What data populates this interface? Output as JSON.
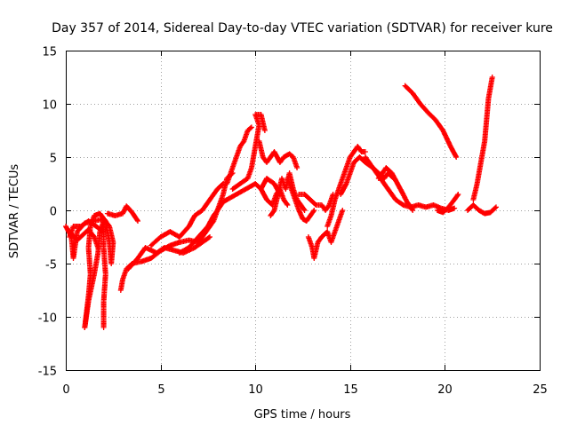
{
  "chart_data": {
    "type": "scatter",
    "title": "Day 357 of 2014, Sidereal Day-to-day VTEC variation (SDTVAR) for receiver kure",
    "xlabel": "GPS time / hours",
    "ylabel": "SDTVAR / TECUs",
    "xlim": [
      0,
      25
    ],
    "ylim": [
      -15,
      15
    ],
    "xticks": [
      "0",
      "5",
      "10",
      "15",
      "20",
      "25"
    ],
    "yticks": [
      "15",
      "10",
      "5",
      "0",
      "-5",
      "-10",
      "-15"
    ],
    "grid": true,
    "marker": "+",
    "series": [
      {
        "name": "SDTVAR",
        "color": "#ff0000",
        "segments": [
          [
            [
              0.0,
              -1.5
            ],
            [
              0.3,
              -2.5
            ],
            [
              0.4,
              -4.5
            ],
            [
              0.6,
              -2.0
            ],
            [
              1.0,
              -1.2
            ],
            [
              1.5,
              -1.0
            ],
            [
              2.0,
              -0.8
            ],
            [
              2.3,
              -1.5
            ],
            [
              2.5,
              -3.0
            ],
            [
              2.4,
              -5.0
            ],
            [
              2.3,
              -3.0
            ],
            [
              2.1,
              -1.0
            ],
            [
              1.8,
              -0.3
            ],
            [
              1.5,
              -0.5
            ],
            [
              1.3,
              -1.5
            ],
            [
              1.2,
              -3.5
            ],
            [
              1.3,
              -6.0
            ],
            [
              1.2,
              -8.0
            ],
            [
              1.1,
              -9.5
            ],
            [
              1.0,
              -11.0
            ]
          ],
          [
            [
              1.0,
              -11.0
            ],
            [
              1.2,
              -8.5
            ],
            [
              1.5,
              -6.0
            ],
            [
              1.7,
              -4.0
            ],
            [
              1.8,
              -2.0
            ],
            [
              2.0,
              -1.0
            ],
            [
              2.0,
              -3.5
            ],
            [
              2.1,
              -6.0
            ],
            [
              2.0,
              -8.5
            ],
            [
              2.0,
              -11.0
            ]
          ],
          [
            [
              0.2,
              -2.5
            ],
            [
              0.4,
              -1.5
            ],
            [
              0.8,
              -1.5
            ],
            [
              1.2,
              -1.0
            ],
            [
              1.6,
              -1.5
            ],
            [
              2.0,
              -2.0
            ]
          ],
          [
            [
              0.3,
              -2.2
            ],
            [
              0.6,
              -2.8
            ],
            [
              0.9,
              -2.3
            ],
            [
              1.2,
              -1.8
            ],
            [
              1.5,
              -2.5
            ],
            [
              1.7,
              -3.5
            ]
          ],
          [
            [
              2.2,
              -0.3
            ],
            [
              2.6,
              -0.5
            ],
            [
              3.0,
              -0.3
            ],
            [
              3.2,
              0.4
            ],
            [
              3.5,
              -0.2
            ],
            [
              3.8,
              -1.0
            ]
          ],
          [
            [
              2.9,
              -7.5
            ],
            [
              3.0,
              -6.5
            ],
            [
              3.2,
              -5.5
            ],
            [
              3.5,
              -5.0
            ],
            [
              4.0,
              -4.8
            ],
            [
              4.5,
              -4.5
            ],
            [
              5.0,
              -3.8
            ],
            [
              5.5,
              -3.3
            ],
            [
              6.0,
              -3.0
            ],
            [
              6.5,
              -2.8
            ],
            [
              7.0,
              -3.0
            ]
          ],
          [
            [
              3.3,
              -5.5
            ],
            [
              3.8,
              -4.5
            ],
            [
              4.2,
              -3.5
            ],
            [
              4.8,
              -4.0
            ],
            [
              5.2,
              -3.5
            ],
            [
              5.8,
              -3.8
            ],
            [
              6.2,
              -4.0
            ],
            [
              6.8,
              -3.5
            ],
            [
              7.2,
              -3.0
            ],
            [
              7.6,
              -2.5
            ]
          ],
          [
            [
              4.5,
              -3.3
            ],
            [
              5.0,
              -2.5
            ],
            [
              5.5,
              -2.0
            ],
            [
              6.0,
              -2.5
            ],
            [
              6.5,
              -1.5
            ],
            [
              6.8,
              -0.5
            ],
            [
              7.2,
              0.0
            ],
            [
              7.6,
              1.0
            ],
            [
              8.0,
              2.0
            ],
            [
              8.3,
              2.5
            ]
          ],
          [
            [
              6.0,
              -4.0
            ],
            [
              6.5,
              -3.5
            ],
            [
              7.0,
              -2.5
            ],
            [
              7.5,
              -1.5
            ],
            [
              7.8,
              -0.5
            ],
            [
              8.0,
              0.0
            ],
            [
              8.3,
              0.8
            ],
            [
              8.5,
              1.0
            ]
          ],
          [
            [
              7.0,
              -3.0
            ],
            [
              7.4,
              -2.0
            ],
            [
              7.8,
              -1.0
            ],
            [
              8.1,
              0.5
            ],
            [
              8.3,
              1.5
            ],
            [
              8.5,
              3.0
            ],
            [
              8.8,
              3.5
            ]
          ],
          [
            [
              8.5,
              2.5
            ],
            [
              8.7,
              3.5
            ],
            [
              9.0,
              5.0
            ],
            [
              9.2,
              6.0
            ],
            [
              9.4,
              6.5
            ],
            [
              9.6,
              7.5
            ],
            [
              9.8,
              7.8
            ]
          ],
          [
            [
              8.5,
              1.0
            ],
            [
              9.0,
              1.5
            ],
            [
              9.5,
              2.0
            ],
            [
              10.0,
              2.5
            ],
            [
              10.3,
              2.0
            ],
            [
              10.6,
              3.0
            ],
            [
              11.0,
              2.5
            ],
            [
              11.3,
              1.5
            ]
          ],
          [
            [
              8.8,
              2.0
            ],
            [
              9.2,
              2.5
            ],
            [
              9.6,
              3.0
            ],
            [
              9.8,
              4.0
            ],
            [
              10.0,
              6.0
            ],
            [
              10.2,
              8.0
            ],
            [
              10.0,
              9.0
            ],
            [
              10.3,
              9.0
            ],
            [
              10.5,
              7.5
            ]
          ],
          [
            [
              10.2,
              6.5
            ],
            [
              10.4,
              5.0
            ],
            [
              10.6,
              4.5
            ],
            [
              10.8,
              5.0
            ],
            [
              11.0,
              5.5
            ],
            [
              11.3,
              4.5
            ],
            [
              11.5,
              5.0
            ],
            [
              11.8,
              5.3
            ],
            [
              12.0,
              5.0
            ],
            [
              12.2,
              4.0
            ]
          ],
          [
            [
              10.3,
              2.0
            ],
            [
              10.6,
              1.0
            ],
            [
              10.9,
              0.5
            ],
            [
              11.1,
              1.5
            ],
            [
              11.3,
              2.0
            ],
            [
              11.5,
              1.0
            ],
            [
              11.7,
              0.5
            ]
          ],
          [
            [
              10.8,
              -0.5
            ],
            [
              11.0,
              0.0
            ],
            [
              11.2,
              1.5
            ],
            [
              11.4,
              3.0
            ],
            [
              11.6,
              2.0
            ],
            [
              11.8,
              3.5
            ],
            [
              12.0,
              2.0
            ],
            [
              12.2,
              1.0
            ],
            [
              12.4,
              0.5
            ],
            [
              12.6,
              0.0
            ]
          ],
          [
            [
              11.7,
              3.0
            ],
            [
              11.9,
              2.0
            ],
            [
              12.1,
              1.0
            ],
            [
              12.3,
              0.0
            ],
            [
              12.5,
              -0.8
            ],
            [
              12.7,
              -1.0
            ],
            [
              12.9,
              -0.5
            ],
            [
              13.1,
              0.0
            ]
          ],
          [
            [
              12.3,
              1.5
            ],
            [
              12.6,
              1.5
            ],
            [
              12.9,
              1.0
            ],
            [
              13.2,
              0.5
            ],
            [
              13.5,
              0.5
            ],
            [
              13.7,
              0.0
            ],
            [
              13.9,
              0.5
            ],
            [
              14.1,
              1.5
            ]
          ],
          [
            [
              12.8,
              -2.5
            ],
            [
              13.0,
              -3.5
            ],
            [
              13.1,
              -4.5
            ],
            [
              13.3,
              -3.0
            ],
            [
              13.5,
              -2.5
            ],
            [
              13.8,
              -2.0
            ],
            [
              14.0,
              -3.0
            ],
            [
              14.2,
              -2.0
            ],
            [
              14.4,
              -1.0
            ],
            [
              14.6,
              0.0
            ]
          ],
          [
            [
              13.8,
              -1.5
            ],
            [
              14.0,
              -0.5
            ],
            [
              14.2,
              1.0
            ],
            [
              14.4,
              2.0
            ],
            [
              14.6,
              3.0
            ],
            [
              14.8,
              4.0
            ],
            [
              15.0,
              5.0
            ],
            [
              15.2,
              5.5
            ],
            [
              15.4,
              6.0
            ],
            [
              15.6,
              5.5
            ],
            [
              15.8,
              5.5
            ]
          ],
          [
            [
              14.5,
              1.5
            ],
            [
              14.8,
              2.5
            ],
            [
              15.0,
              3.5
            ],
            [
              15.2,
              4.5
            ],
            [
              15.5,
              5.0
            ],
            [
              15.8,
              4.5
            ],
            [
              16.2,
              4.0
            ],
            [
              16.5,
              3.5
            ],
            [
              16.8,
              3.0
            ],
            [
              17.0,
              3.5
            ],
            [
              17.3,
              3.0
            ]
          ],
          [
            [
              15.8,
              5.0
            ],
            [
              16.2,
              4.0
            ],
            [
              16.6,
              3.0
            ],
            [
              17.0,
              2.0
            ],
            [
              17.4,
              1.0
            ],
            [
              17.8,
              0.5
            ],
            [
              18.2,
              0.3
            ],
            [
              18.6,
              0.5
            ],
            [
              19.0,
              0.3
            ],
            [
              19.4,
              0.5
            ],
            [
              19.8,
              0.2
            ],
            [
              20.2,
              0.0
            ],
            [
              20.5,
              0.2
            ]
          ],
          [
            [
              16.5,
              3.0
            ],
            [
              16.9,
              4.0
            ],
            [
              17.2,
              3.5
            ],
            [
              17.5,
              2.5
            ],
            [
              17.8,
              1.5
            ],
            [
              18.0,
              0.8
            ],
            [
              18.3,
              0.0
            ]
          ],
          [
            [
              19.6,
              0.0
            ],
            [
              19.9,
              -0.2
            ],
            [
              20.2,
              0.3
            ],
            [
              20.5,
              1.0
            ],
            [
              20.7,
              1.5
            ]
          ],
          [
            [
              17.9,
              11.7
            ],
            [
              18.3,
              11.0
            ],
            [
              18.7,
              10.0
            ],
            [
              19.1,
              9.2
            ],
            [
              19.5,
              8.5
            ],
            [
              19.9,
              7.5
            ],
            [
              20.3,
              6.0
            ],
            [
              20.6,
              5.0
            ]
          ],
          [
            [
              21.2,
              0.0
            ],
            [
              21.5,
              0.5
            ],
            [
              21.8,
              0.0
            ],
            [
              22.1,
              -0.3
            ],
            [
              22.4,
              -0.2
            ],
            [
              22.7,
              0.3
            ]
          ],
          [
            [
              21.5,
              1.0
            ],
            [
              21.7,
              2.5
            ],
            [
              21.9,
              4.5
            ],
            [
              22.1,
              6.5
            ],
            [
              22.2,
              8.5
            ],
            [
              22.3,
              10.5
            ],
            [
              22.5,
              12.5
            ]
          ]
        ]
      }
    ]
  }
}
